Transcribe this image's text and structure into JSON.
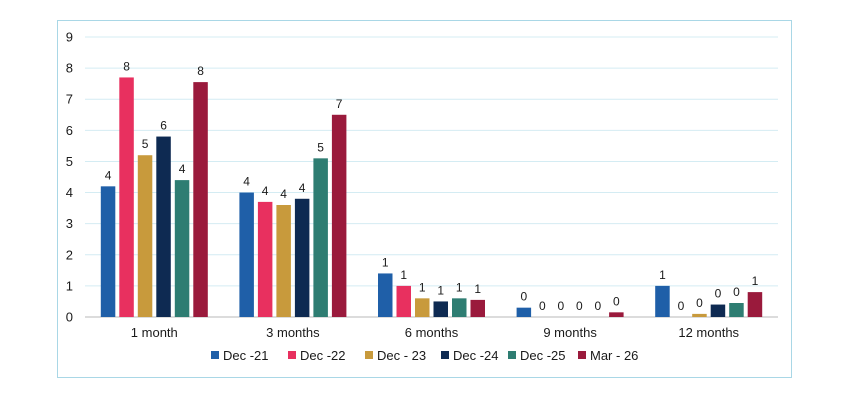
{
  "chart_data": {
    "type": "bar",
    "title": "",
    "xlabel": "",
    "ylabel": "",
    "ylim": [
      0,
      9
    ],
    "yticks": [
      0,
      1,
      2,
      3,
      4,
      5,
      6,
      7,
      8,
      9
    ],
    "grid": true,
    "legend_position": "bottom",
    "categories": [
      "1 month",
      "3 months",
      "6 months",
      "9 months",
      "12 months"
    ],
    "series": [
      {
        "name": "Dec -21",
        "color": "#1f5fa8",
        "values": [
          4.2,
          4.0,
          1.4,
          0.3,
          1.0
        ],
        "labels": [
          "4",
          "4",
          "1",
          "0",
          "1"
        ]
      },
      {
        "name": "Dec -22",
        "color": "#e8305f",
        "values": [
          7.7,
          3.7,
          1.0,
          0.0,
          0.0
        ],
        "labels": [
          "8",
          "4",
          "1",
          "0",
          "0"
        ]
      },
      {
        "name": "Dec - 23",
        "color": "#c89a3c",
        "values": [
          5.2,
          3.6,
          0.6,
          0.0,
          0.1
        ],
        "labels": [
          "5",
          "4",
          "1",
          "0",
          "0"
        ]
      },
      {
        "name": "Dec -24",
        "color": "#0e2a52",
        "values": [
          5.8,
          3.8,
          0.5,
          0.0,
          0.4
        ],
        "labels": [
          "6",
          "4",
          "1",
          "0",
          "0"
        ]
      },
      {
        "name": "Dec -25",
        "color": "#2e7d72",
        "values": [
          4.4,
          5.1,
          0.6,
          0.0,
          0.45
        ],
        "labels": [
          "4",
          "5",
          "1",
          "0",
          "0"
        ]
      },
      {
        "name": "Mar - 26",
        "color": "#9a1a3c",
        "values": [
          7.55,
          6.5,
          0.55,
          0.15,
          0.8
        ],
        "labels": [
          "8",
          "7",
          "1",
          "0",
          "1"
        ]
      }
    ]
  }
}
